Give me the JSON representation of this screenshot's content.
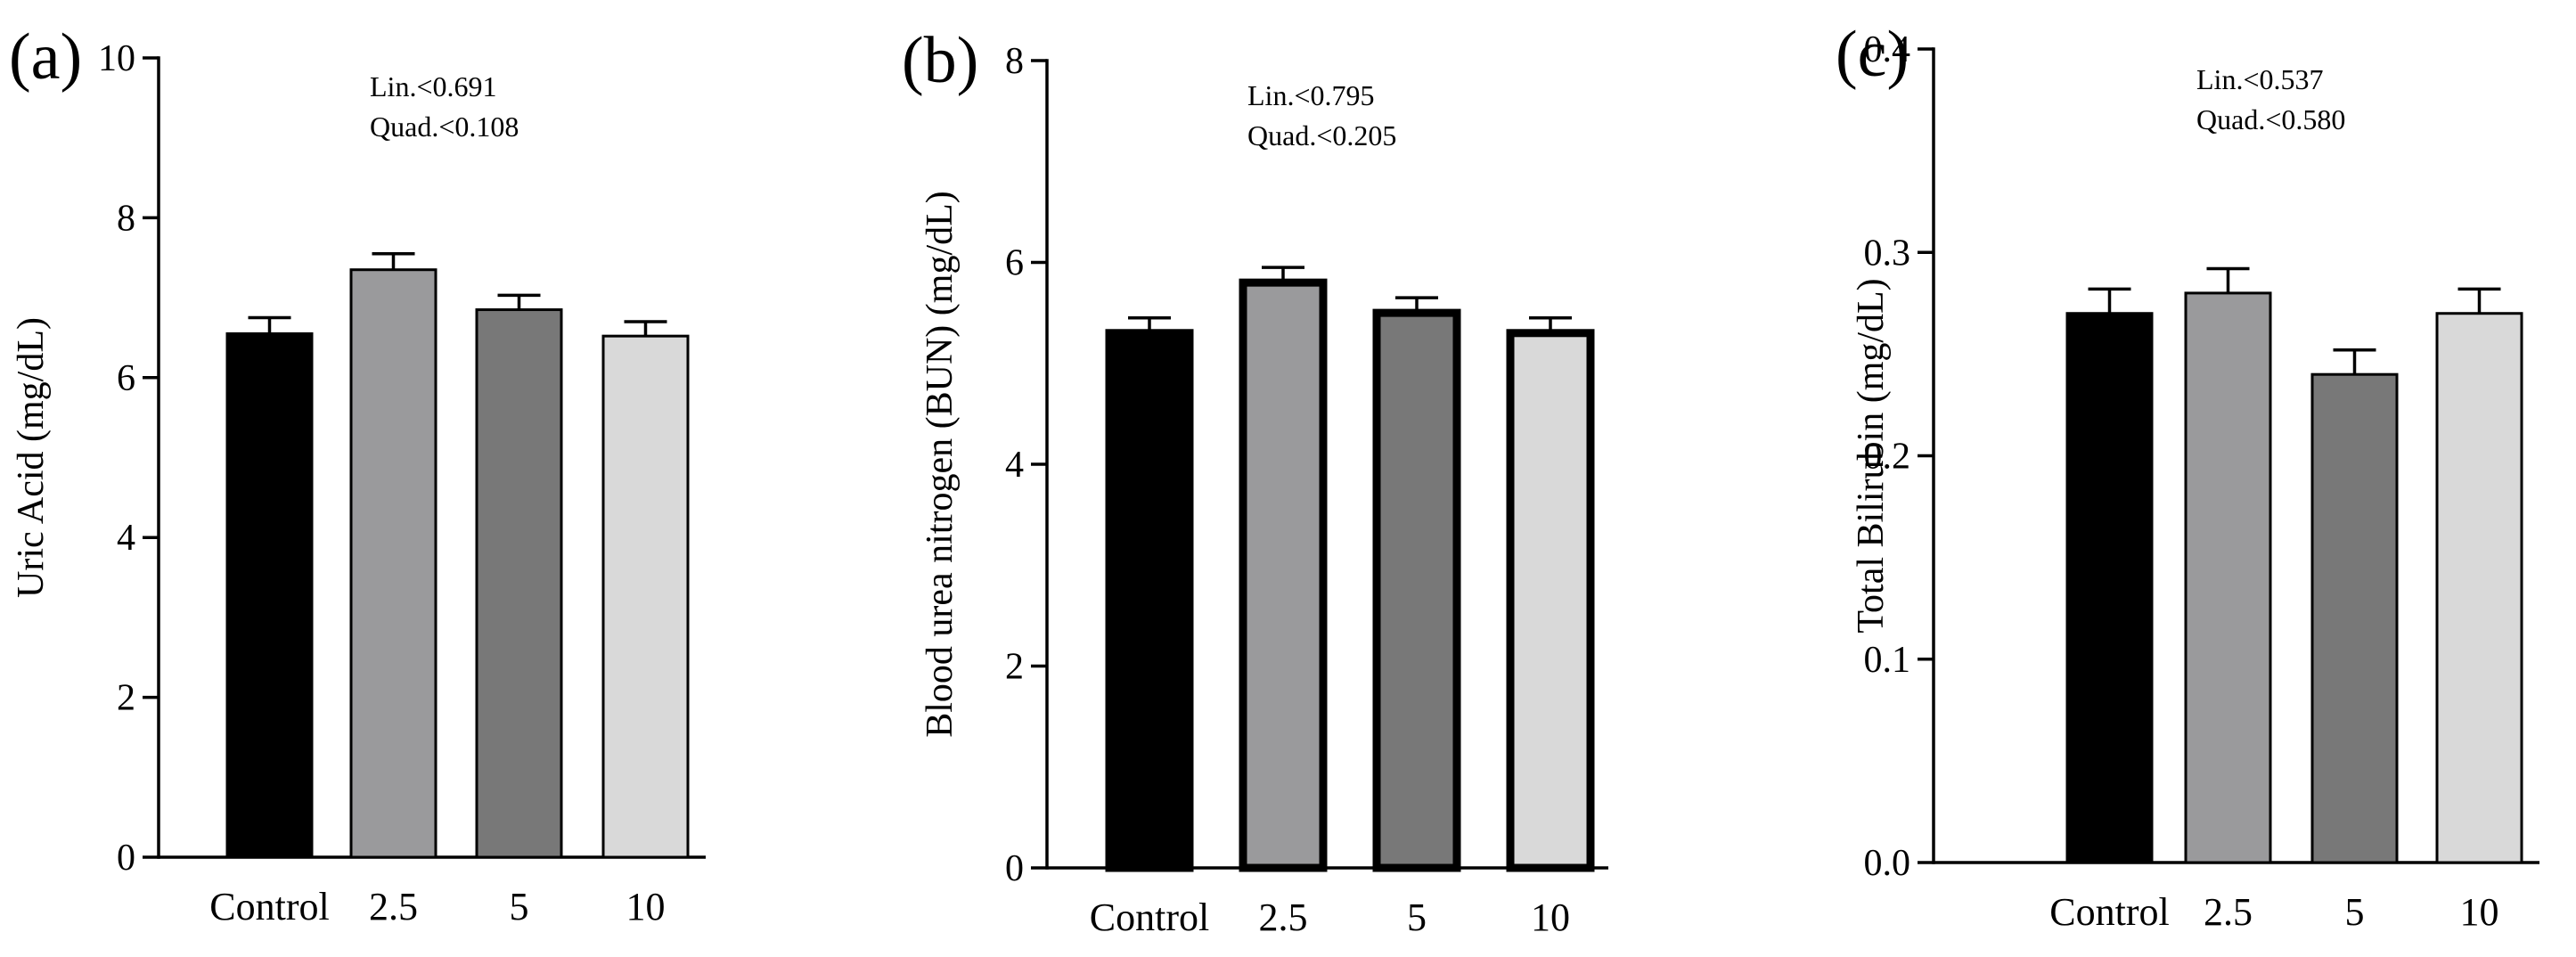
{
  "chart_data": [
    {
      "type": "bar",
      "panel_label": "(a)",
      "ylabel": "Uric Acid (mg/dL)",
      "xlabel": "",
      "categories": [
        "Control",
        "2.5",
        "5",
        "10"
      ],
      "values": [
        6.55,
        7.35,
        6.85,
        6.52
      ],
      "errors": [
        0.2,
        0.2,
        0.18,
        0.18
      ],
      "ylim": [
        0,
        10
      ],
      "yticks": [
        0,
        2,
        4,
        6,
        8,
        10
      ],
      "ytick_labels": [
        "0",
        "2",
        "4",
        "6",
        "8",
        "10"
      ],
      "annotations": [
        "Lin.<0.691",
        "Quad.<0.108"
      ],
      "grid": false
    },
    {
      "type": "bar",
      "panel_label": "(b)",
      "ylabel": "Blood urea nitrogen (BUN) (mg/dL)",
      "xlabel": "",
      "categories": [
        "Control",
        "2.5",
        "5",
        "10"
      ],
      "values": [
        5.3,
        5.8,
        5.5,
        5.3
      ],
      "errors": [
        0.15,
        0.15,
        0.15,
        0.15
      ],
      "ylim": [
        0,
        8
      ],
      "yticks": [
        0,
        2,
        4,
        6,
        8
      ],
      "ytick_labels": [
        "0",
        "2",
        "4",
        "6",
        "8"
      ],
      "annotations": [
        "Lin.<0.795",
        "Quad.<0.205"
      ],
      "grid": false
    },
    {
      "type": "bar",
      "panel_label": "(c)",
      "ylabel": "Total Bilirubin (mg/dL)",
      "xlabel": "",
      "categories": [
        "Control",
        "2.5",
        "5",
        "10"
      ],
      "values": [
        0.27,
        0.28,
        0.24,
        0.27
      ],
      "errors": [
        0.012,
        0.012,
        0.012,
        0.012
      ],
      "ylim": [
        0,
        0.4
      ],
      "yticks": [
        0,
        0.1,
        0.2,
        0.3,
        0.4
      ],
      "ytick_labels": [
        "0.0",
        "0.1",
        "0.2",
        "0.3",
        "0.4"
      ],
      "annotations": [
        "Lin.<0.537",
        "Quad.<0.580"
      ],
      "grid": false
    }
  ],
  "colors": {
    "bar_fills": [
      "#000000",
      "#9a9a9c",
      "#787878",
      "#d9d9d9"
    ],
    "bar_outline": "#000000",
    "axis": "#000000"
  }
}
